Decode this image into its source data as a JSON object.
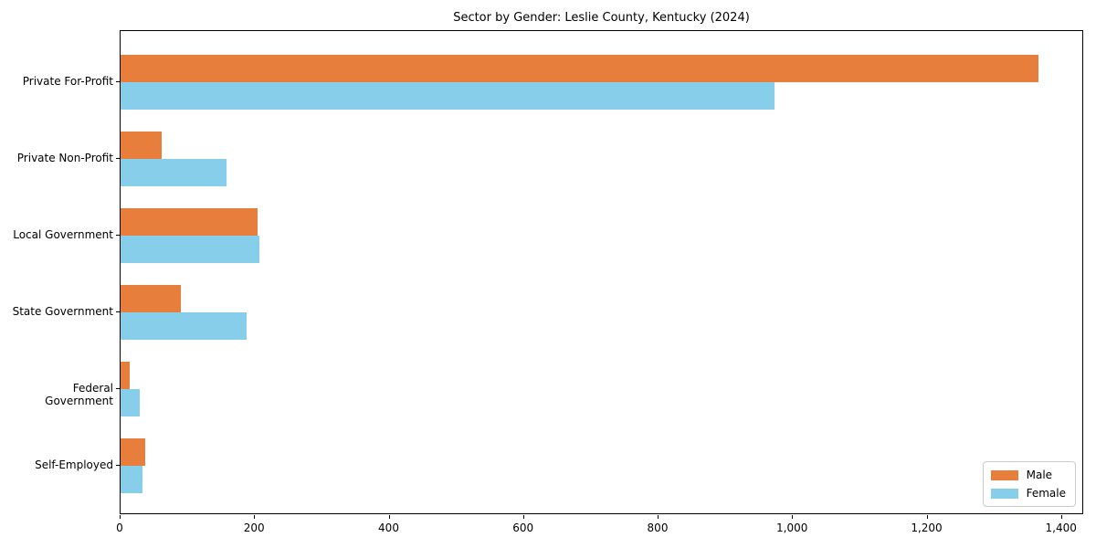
{
  "chart_data": {
    "type": "bar",
    "orientation": "horizontal",
    "title": "Sector by Gender: Leslie County, Kentucky (2024)",
    "categories": [
      "Private For-Profit",
      "Private Non-Profit",
      "Local Government",
      "State Government",
      "Federal Government",
      "Self-Employed"
    ],
    "series": [
      {
        "name": "Male",
        "color": "#e87e3c",
        "values": [
          1365,
          61,
          203,
          89,
          13,
          36
        ]
      },
      {
        "name": "Female",
        "color": "#87ceeb",
        "values": [
          972,
          158,
          207,
          188,
          28,
          33
        ]
      }
    ],
    "xlim": [
      0,
      1433
    ],
    "xticks": [
      0,
      200,
      400,
      600,
      800,
      1000,
      1200,
      1400
    ],
    "xtick_labels": [
      "0",
      "200",
      "400",
      "600",
      "800",
      "1,000",
      "1,200",
      "1,400"
    ],
    "xlabel": "",
    "ylabel": "",
    "grid": false,
    "legend": {
      "position": "lower-right",
      "entries": [
        "Male",
        "Female"
      ]
    }
  }
}
